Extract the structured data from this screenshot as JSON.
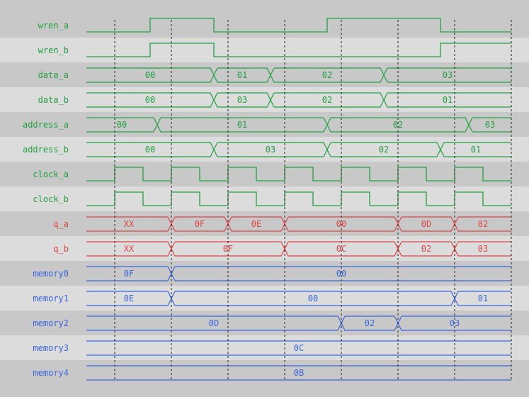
{
  "time_range": [
    0,
    15
  ],
  "gridlines": [
    1,
    3,
    5,
    7,
    9,
    11,
    13,
    15
  ],
  "colors": {
    "row_dark": "#c8c8c8",
    "row_light": "#dcdcdc",
    "input": "#22a040",
    "output": "#e04444",
    "memory": "#3a66dd",
    "grid": "#222222"
  },
  "signals": [
    {
      "name": "wren_a",
      "kind": "bit",
      "group": "input",
      "edges": [
        [
          0,
          0
        ],
        [
          2.25,
          1
        ],
        [
          4.5,
          0
        ],
        [
          8.5,
          1
        ],
        [
          12.5,
          0
        ]
      ]
    },
    {
      "name": "wren_b",
      "kind": "bit",
      "group": "input",
      "edges": [
        [
          0,
          0
        ],
        [
          2.25,
          1
        ],
        [
          4.5,
          0
        ],
        [
          12.5,
          1
        ]
      ]
    },
    {
      "name": "data_a",
      "kind": "bus",
      "group": "input",
      "segments": [
        [
          0,
          "00"
        ],
        [
          4.5,
          "01"
        ],
        [
          6.5,
          "02"
        ],
        [
          10.5,
          "03"
        ]
      ]
    },
    {
      "name": "data_b",
      "kind": "bus",
      "group": "input",
      "segments": [
        [
          0,
          "00"
        ],
        [
          4.5,
          "03"
        ],
        [
          6.5,
          "02"
        ],
        [
          10.5,
          "01"
        ]
      ]
    },
    {
      "name": "address_a",
      "kind": "bus",
      "group": "input",
      "segments": [
        [
          0,
          "00"
        ],
        [
          2.5,
          "01"
        ],
        [
          8.5,
          "02"
        ],
        [
          13.5,
          "03"
        ]
      ]
    },
    {
      "name": "address_b",
      "kind": "bus",
      "group": "input",
      "segments": [
        [
          0,
          "00"
        ],
        [
          4.5,
          "03"
        ],
        [
          8.5,
          "02"
        ],
        [
          12.5,
          "01"
        ]
      ]
    },
    {
      "name": "clock_a",
      "kind": "bit",
      "group": "input",
      "edges": [
        [
          0,
          0
        ],
        [
          1,
          1
        ],
        [
          2,
          0
        ],
        [
          3,
          1
        ],
        [
          4,
          0
        ],
        [
          5,
          1
        ],
        [
          6,
          0
        ],
        [
          7,
          1
        ],
        [
          8,
          0
        ],
        [
          9,
          1
        ],
        [
          10,
          0
        ],
        [
          11,
          1
        ],
        [
          12,
          0
        ],
        [
          13,
          1
        ],
        [
          14,
          0
        ]
      ]
    },
    {
      "name": "clock_b",
      "kind": "bit",
      "group": "input",
      "edges": [
        [
          0,
          0
        ],
        [
          1,
          1
        ],
        [
          2,
          0
        ],
        [
          3,
          1
        ],
        [
          4,
          0
        ],
        [
          5,
          1
        ],
        [
          6,
          0
        ],
        [
          7,
          1
        ],
        [
          8,
          0
        ],
        [
          9,
          1
        ],
        [
          10,
          0
        ],
        [
          11,
          1
        ],
        [
          12,
          0
        ],
        [
          13,
          1
        ],
        [
          14,
          0
        ]
      ]
    },
    {
      "name": "q_a",
      "kind": "bus",
      "group": "output",
      "segments": [
        [
          0,
          "XX"
        ],
        [
          3,
          "0F"
        ],
        [
          5,
          "0E"
        ],
        [
          7,
          "00"
        ],
        [
          11,
          "0D"
        ],
        [
          13,
          "02"
        ]
      ]
    },
    {
      "name": "q_b",
      "kind": "bus",
      "group": "output",
      "segments": [
        [
          0,
          "XX"
        ],
        [
          3,
          "0F"
        ],
        [
          7,
          "0C"
        ],
        [
          11,
          "02"
        ],
        [
          13,
          "03"
        ]
      ]
    },
    {
      "name": "memory0",
      "kind": "bus",
      "group": "memory",
      "segments": [
        [
          0,
          "0F"
        ],
        [
          3,
          "00"
        ]
      ]
    },
    {
      "name": "memory1",
      "kind": "bus",
      "group": "memory",
      "segments": [
        [
          0,
          "0E"
        ],
        [
          3,
          "00"
        ],
        [
          13,
          "01"
        ]
      ]
    },
    {
      "name": "memory2",
      "kind": "bus",
      "group": "memory",
      "segments": [
        [
          0,
          "0D"
        ],
        [
          9,
          "02"
        ],
        [
          11,
          "03"
        ]
      ]
    },
    {
      "name": "memory3",
      "kind": "bus",
      "group": "memory",
      "segments": [
        [
          0,
          "0C"
        ]
      ]
    },
    {
      "name": "memory4",
      "kind": "bus",
      "group": "memory",
      "segments": [
        [
          0,
          "0B"
        ]
      ]
    }
  ]
}
